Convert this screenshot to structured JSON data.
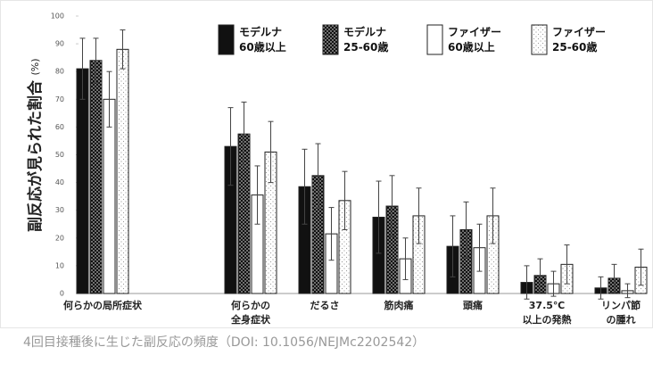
{
  "chart_data": {
    "type": "bar",
    "ylabel": "副反応が見られた割合",
    "yunit": "(%)",
    "caption": "4回目接種後に生じた副反応の頻度（DOI: 10.1056/NEJMc2202542）",
    "categories": [
      "何らかの局所症状",
      "何らかの\n全身症状",
      "だるさ",
      "筋肉痛",
      "頭痛",
      "37.5℃\n以上の発熱",
      "リンパ節\nの腫れ"
    ],
    "series": [
      {
        "name": "モデルナ\n60歳以上",
        "color": "#111111",
        "pattern": "solid",
        "values": [
          81,
          53,
          38.5,
          27.5,
          17,
          4,
          2
        ],
        "errors": [
          11,
          14,
          13.5,
          13,
          11,
          6,
          4
        ]
      },
      {
        "name": "モデルナ\n25-60歳",
        "color": "#111111",
        "pattern": "dots",
        "values": [
          84,
          57.5,
          42.5,
          31.5,
          23,
          6.5,
          5.5
        ],
        "errors": [
          8,
          11.5,
          11.5,
          11,
          10,
          6,
          5
        ]
      },
      {
        "name": "ファイザー\n60歳以上",
        "color": "#ffffff",
        "pattern": "solid",
        "values": [
          70,
          35.5,
          21.5,
          12.5,
          16.5,
          3.5,
          1
        ],
        "errors": [
          10,
          10.5,
          9.5,
          7.5,
          8.5,
          4.5,
          2.5
        ]
      },
      {
        "name": "ファイザー\n25-60歳",
        "color": "#ffffff",
        "pattern": "dots",
        "values": [
          88,
          51,
          33.5,
          28,
          28,
          10.5,
          9.5
        ],
        "errors": [
          7,
          11,
          10.5,
          10,
          10,
          7,
          6.5
        ]
      }
    ],
    "ylim": [
      0,
      100
    ],
    "yticks": [
      0,
      10,
      20,
      30,
      40,
      50,
      60,
      70,
      80,
      90,
      100
    ],
    "grid": false
  }
}
